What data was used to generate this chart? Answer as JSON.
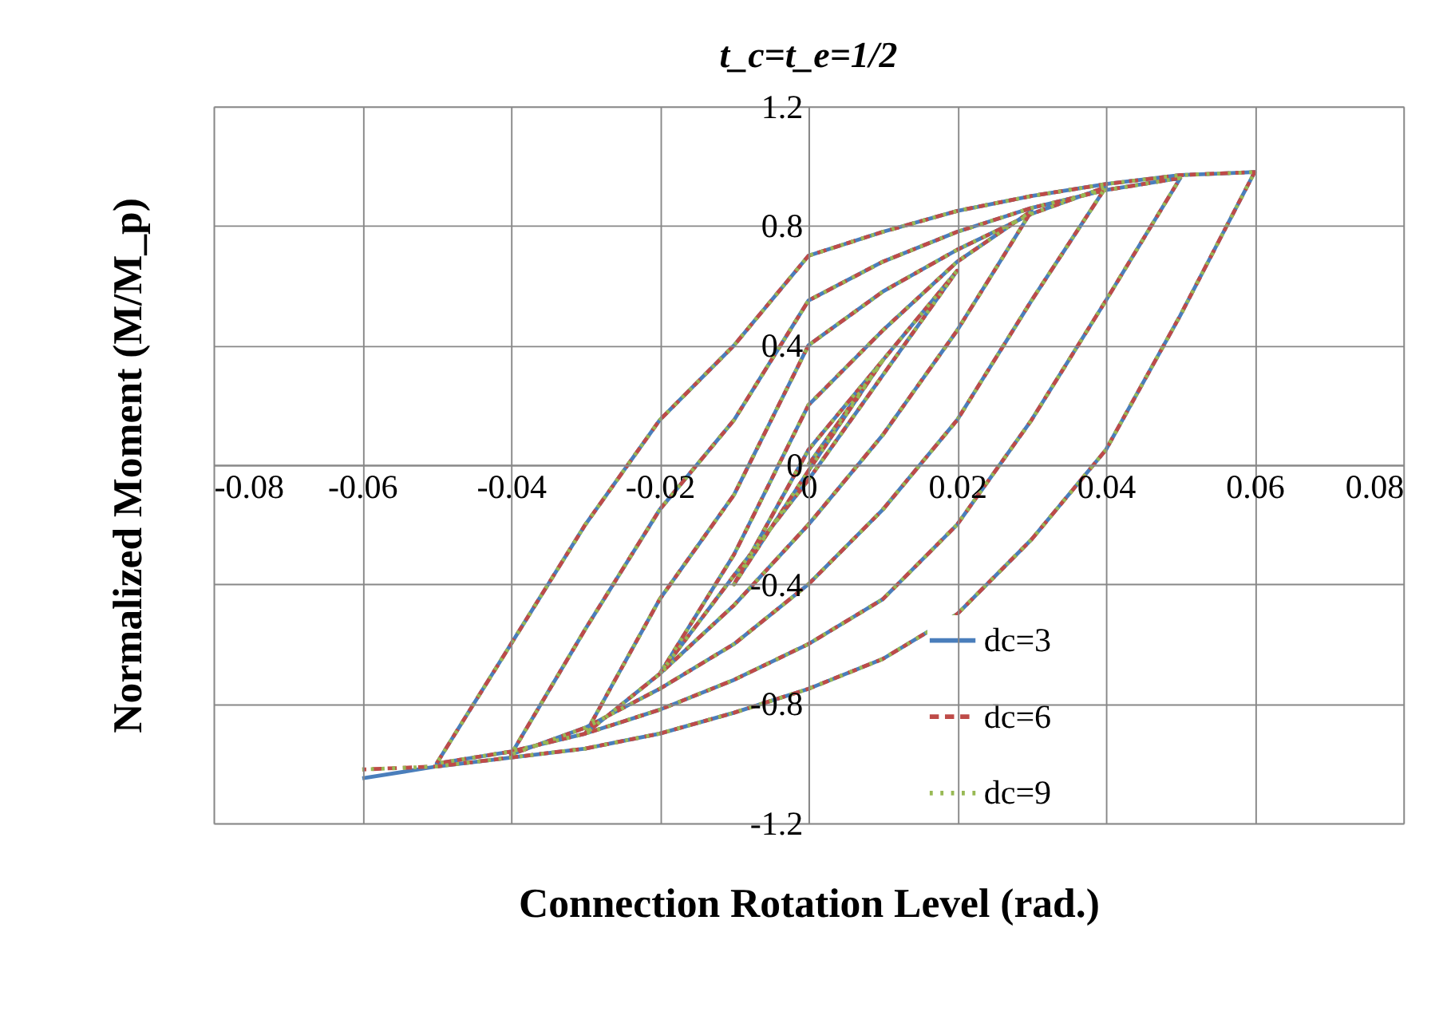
{
  "chart_data": {
    "type": "line",
    "title": "t_c=t_e=1/2",
    "xlabel": "Connection Rotation Level (rad.)",
    "ylabel": "Normalized Moment (M/M_p)",
    "x": [
      0,
      0.01,
      0,
      -0.01,
      0,
      0.01,
      0.02,
      0.01,
      0,
      -0.01,
      -0.02,
      -0.01,
      0,
      0.01,
      0.02,
      0.03,
      0.02,
      0.01,
      0,
      -0.01,
      -0.02,
      -0.03,
      -0.02,
      -0.01,
      0,
      0.01,
      0.02,
      0.03,
      0.04,
      0.03,
      0.02,
      0.01,
      0,
      -0.01,
      -0.02,
      -0.03,
      -0.04,
      -0.03,
      -0.02,
      -0.01,
      0,
      0.01,
      0.02,
      0.03,
      0.04,
      0.05,
      0.04,
      0.03,
      0.02,
      0.01,
      0,
      -0.01,
      -0.02,
      -0.03,
      -0.04,
      -0.05,
      -0.04,
      -0.03,
      -0.02,
      -0.01,
      0,
      0.01,
      0.02,
      0.03,
      0.04,
      0.05,
      0.06,
      0.05,
      0.04,
      0.03,
      0.02,
      0.01,
      0,
      -0.01,
      -0.02,
      -0.03,
      -0.04,
      -0.05,
      -0.06
    ],
    "series": [
      {
        "name": "dc=3",
        "color": "#4a7ebb",
        "line_style": "solid",
        "values": [
          0,
          0.35,
          -0.02,
          -0.4,
          0.05,
          0.35,
          0.65,
          0.3,
          -0.05,
          -0.37,
          -0.7,
          -0.3,
          0.2,
          0.45,
          0.68,
          0.85,
          0.45,
          0.1,
          -0.2,
          -0.47,
          -0.7,
          -0.9,
          -0.45,
          -0.1,
          0.4,
          0.58,
          0.72,
          0.84,
          0.93,
          0.55,
          0.15,
          -0.15,
          -0.4,
          -0.6,
          -0.75,
          -0.88,
          -0.97,
          -0.55,
          -0.15,
          0.15,
          0.55,
          0.68,
          0.78,
          0.86,
          0.92,
          0.96,
          0.55,
          0.15,
          -0.2,
          -0.45,
          -0.6,
          -0.72,
          -0.82,
          -0.9,
          -0.96,
          -1.0,
          -0.6,
          -0.2,
          0.15,
          0.4,
          0.7,
          0.78,
          0.85,
          0.9,
          0.94,
          0.97,
          0.98,
          0.5,
          0.05,
          -0.25,
          -0.5,
          -0.65,
          -0.75,
          -0.83,
          -0.9,
          -0.95,
          -0.98,
          -1.01,
          -1.05
        ]
      },
      {
        "name": "dc=6",
        "color": "#be4b48",
        "line_style": "dashed",
        "values": [
          0,
          0.35,
          -0.02,
          -0.4,
          0.05,
          0.35,
          0.65,
          0.3,
          -0.05,
          -0.37,
          -0.7,
          -0.3,
          0.2,
          0.45,
          0.68,
          0.85,
          0.45,
          0.1,
          -0.2,
          -0.47,
          -0.7,
          -0.9,
          -0.45,
          -0.1,
          0.4,
          0.58,
          0.72,
          0.84,
          0.93,
          0.55,
          0.15,
          -0.15,
          -0.4,
          -0.6,
          -0.75,
          -0.88,
          -0.97,
          -0.55,
          -0.15,
          0.15,
          0.55,
          0.68,
          0.78,
          0.86,
          0.92,
          0.96,
          0.55,
          0.15,
          -0.2,
          -0.45,
          -0.6,
          -0.72,
          -0.82,
          -0.9,
          -0.96,
          -1.0,
          -0.6,
          -0.2,
          0.15,
          0.4,
          0.7,
          0.78,
          0.85,
          0.9,
          0.94,
          0.97,
          0.98,
          0.5,
          0.05,
          -0.25,
          -0.5,
          -0.65,
          -0.75,
          -0.83,
          -0.9,
          -0.95,
          -0.98,
          -1.01,
          -1.02
        ]
      },
      {
        "name": "dc=9",
        "color": "#98b954",
        "line_style": "dotted",
        "values": [
          0,
          0.35,
          -0.02,
          -0.4,
          0.05,
          0.35,
          0.65,
          0.3,
          -0.05,
          -0.37,
          -0.7,
          -0.3,
          0.2,
          0.45,
          0.68,
          0.85,
          0.45,
          0.1,
          -0.2,
          -0.47,
          -0.7,
          -0.9,
          -0.45,
          -0.1,
          0.4,
          0.58,
          0.72,
          0.84,
          0.93,
          0.55,
          0.15,
          -0.15,
          -0.4,
          -0.6,
          -0.75,
          -0.88,
          -0.97,
          -0.55,
          -0.15,
          0.15,
          0.55,
          0.68,
          0.78,
          0.86,
          0.92,
          0.96,
          0.55,
          0.15,
          -0.2,
          -0.45,
          -0.6,
          -0.72,
          -0.82,
          -0.9,
          -0.96,
          -1.0,
          -0.6,
          -0.2,
          0.15,
          0.4,
          0.7,
          0.78,
          0.85,
          0.9,
          0.94,
          0.97,
          0.98,
          0.5,
          0.05,
          -0.25,
          -0.5,
          -0.65,
          -0.75,
          -0.83,
          -0.9,
          -0.95,
          -0.98,
          -1.01,
          -1.02
        ]
      }
    ],
    "xlim": [
      -0.08,
      0.08
    ],
    "xticks": [
      -0.08,
      -0.06,
      -0.04,
      -0.02,
      0,
      0.02,
      0.04,
      0.06,
      0.08
    ],
    "ylim": [
      -1.2,
      1.2
    ],
    "yticks": [
      -1.2,
      -0.8,
      -0.4,
      0,
      0.4,
      0.8,
      1.2
    ],
    "grid": true,
    "legend": "bottom right",
    "marker": "none"
  }
}
